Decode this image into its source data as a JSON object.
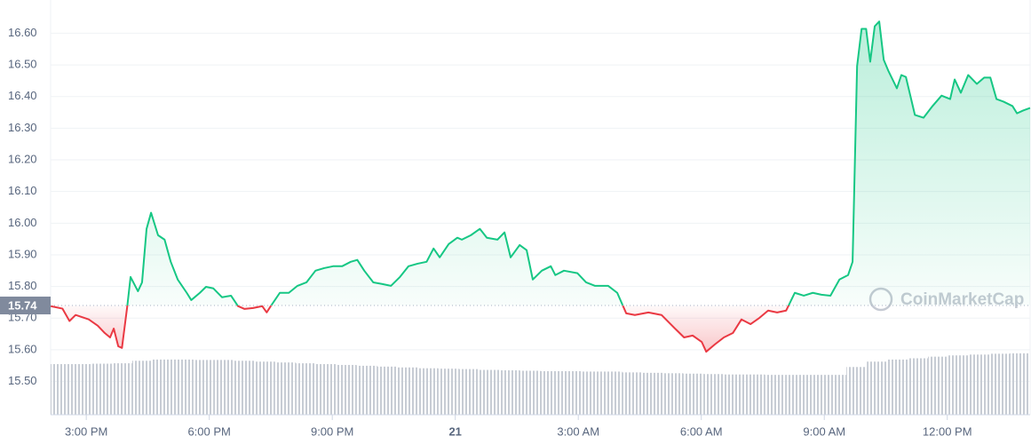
{
  "chart_data": {
    "type": "line",
    "x": [
      14.13,
      14.42,
      14.59,
      14.74,
      15.06,
      15.28,
      15.45,
      15.58,
      15.67,
      15.78,
      15.87,
      16.0,
      16.08,
      16.26,
      16.36,
      16.47,
      16.58,
      16.75,
      16.91,
      17.06,
      17.23,
      17.45,
      17.56,
      17.77,
      17.92,
      18.1,
      18.31,
      18.53,
      18.7,
      18.86,
      19.07,
      19.29,
      19.4,
      19.5,
      19.72,
      19.94,
      20.15,
      20.37,
      20.59,
      20.8,
      21.02,
      21.24,
      21.45,
      21.61,
      21.78,
      22.0,
      22.21,
      22.43,
      22.65,
      22.86,
      23.08,
      23.3,
      23.47,
      23.62,
      23.84,
      24.05,
      24.16,
      24.38,
      24.6,
      24.77,
      25.03,
      25.2,
      25.35,
      25.57,
      25.74,
      25.89,
      26.11,
      26.33,
      26.44,
      26.65,
      26.98,
      27.19,
      27.41,
      27.73,
      27.95,
      28.17,
      28.38,
      28.71,
      29.03,
      29.36,
      29.58,
      29.79,
      30.01,
      30.12,
      30.33,
      30.55,
      30.77,
      30.98,
      31.2,
      31.42,
      31.63,
      31.85,
      32.07,
      32.28,
      32.5,
      32.72,
      32.93,
      33.15,
      33.37,
      33.58,
      33.69,
      33.8,
      33.91,
      34.02,
      34.12,
      34.23,
      34.34,
      34.45,
      34.56,
      34.77,
      34.88,
      34.99,
      35.21,
      35.42,
      35.64,
      35.86,
      36.07,
      36.18,
      36.33,
      36.51,
      36.72,
      36.9,
      37.05,
      37.2,
      37.37,
      37.59,
      37.7,
      37.85,
      38.02
    ],
    "series": [
      {
        "name": "Price",
        "values": [
          15.738,
          15.73,
          15.691,
          15.71,
          15.696,
          15.676,
          15.653,
          15.639,
          15.667,
          15.611,
          15.606,
          15.738,
          15.83,
          15.785,
          15.813,
          15.982,
          16.033,
          15.962,
          15.948,
          15.878,
          15.822,
          15.78,
          15.757,
          15.78,
          15.799,
          15.794,
          15.766,
          15.771,
          15.738,
          15.729,
          15.732,
          15.738,
          15.718,
          15.738,
          15.78,
          15.78,
          15.802,
          15.813,
          15.85,
          15.858,
          15.864,
          15.864,
          15.878,
          15.884,
          15.85,
          15.813,
          15.808,
          15.802,
          15.83,
          15.864,
          15.872,
          15.878,
          15.92,
          15.892,
          15.934,
          15.954,
          15.948,
          15.962,
          15.982,
          15.954,
          15.948,
          15.971,
          15.892,
          15.931,
          15.915,
          15.822,
          15.85,
          15.864,
          15.836,
          15.85,
          15.842,
          15.813,
          15.802,
          15.802,
          15.78,
          15.715,
          15.71,
          15.718,
          15.71,
          15.667,
          15.639,
          15.645,
          15.625,
          15.594,
          15.617,
          15.639,
          15.653,
          15.696,
          15.681,
          15.701,
          15.724,
          15.718,
          15.724,
          15.78,
          15.771,
          15.78,
          15.774,
          15.771,
          15.822,
          15.836,
          15.878,
          16.496,
          16.614,
          16.614,
          16.51,
          16.622,
          16.637,
          16.516,
          16.482,
          16.426,
          16.468,
          16.462,
          16.342,
          16.333,
          16.37,
          16.403,
          16.392,
          16.454,
          16.412,
          16.468,
          16.44,
          16.46,
          16.46,
          16.392,
          16.384,
          16.37,
          16.347,
          16.356,
          16.364
        ],
        "up_color": "#16c784",
        "down_color": "#ea3943"
      }
    ],
    "reference": 15.74,
    "volume": {
      "values": [
        12.2,
        12.2,
        12.3,
        12.4,
        13.0,
        13.3,
        13.3,
        13.2,
        13.2,
        13.0,
        12.8,
        12.6,
        12.4,
        12.2,
        12.0,
        11.8,
        11.6,
        11.4,
        11.2,
        11.1,
        11.0,
        10.8,
        10.7,
        10.6,
        10.5,
        10.5,
        10.4,
        10.4,
        10.2,
        10.1,
        10.0,
        9.9,
        9.8,
        9.7,
        9.7,
        9.6,
        9.6,
        9.6,
        9.6,
        11.5,
        12.8,
        13.3,
        13.6,
        14.0,
        14.3,
        14.5,
        14.7,
        14.8
      ],
      "color": "#c7ccd4",
      "y2lim": [
        0,
        100
      ]
    },
    "xlim": [
      14.13,
      38.02
    ],
    "ylim": [
      15.395,
      16.705
    ],
    "xticks": [
      {
        "value": 15,
        "label": "3:00 PM"
      },
      {
        "value": 18,
        "label": "6:00 PM"
      },
      {
        "value": 21,
        "label": "9:00 PM"
      },
      {
        "value": 24,
        "label": "21"
      },
      {
        "value": 27,
        "label": "3:00 AM"
      },
      {
        "value": 30,
        "label": "6:00 AM"
      },
      {
        "value": 33,
        "label": "9:00 AM"
      },
      {
        "value": 36,
        "label": "12:00 PM"
      }
    ],
    "yticks": [
      {
        "value": 15.5,
        "label": "15.50"
      },
      {
        "value": 15.6,
        "label": "15.60"
      },
      {
        "value": 15.7,
        "label": "15.70"
      },
      {
        "value": 15.8,
        "label": "15.80"
      },
      {
        "value": 15.9,
        "label": "15.90"
      },
      {
        "value": 16.0,
        "label": "16.00"
      },
      {
        "value": 16.1,
        "label": "16.10"
      },
      {
        "value": 16.2,
        "label": "16.20"
      },
      {
        "value": 16.3,
        "label": "16.30"
      },
      {
        "value": 16.4,
        "label": "16.40"
      },
      {
        "value": 16.5,
        "label": "16.50"
      },
      {
        "value": 16.6,
        "label": "16.60"
      }
    ],
    "grid": true,
    "watermark": "CoinMarketCap"
  }
}
